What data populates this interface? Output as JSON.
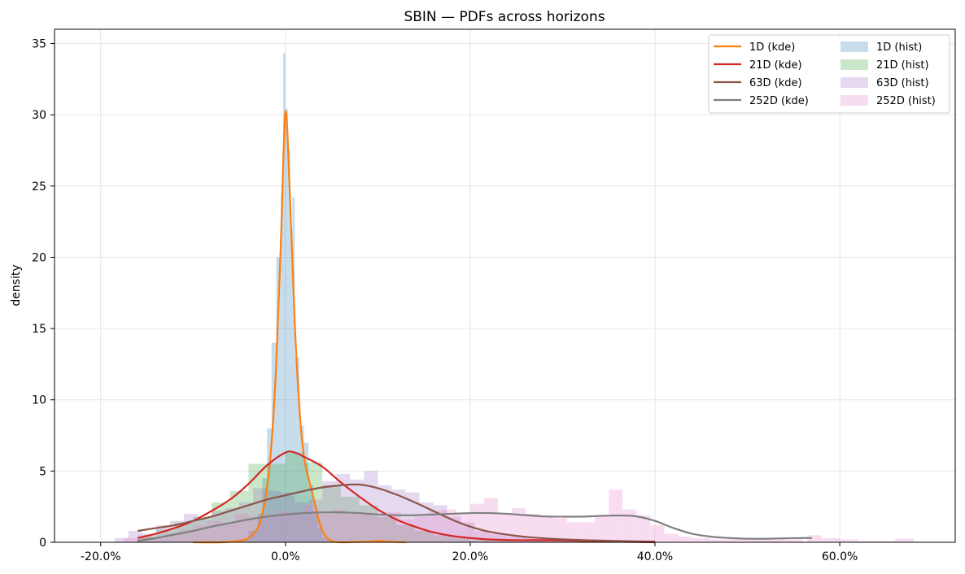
{
  "chart_data": {
    "type": "line",
    "title": "SBIN — PDFs across horizons",
    "xlabel": "",
    "ylabel": "density",
    "xlim": [
      -0.25,
      0.725
    ],
    "ylim": [
      0,
      36
    ],
    "xticks": [
      -0.2,
      0.0,
      0.2,
      0.4,
      0.6
    ],
    "xtick_labels": [
      "-20.0%",
      "0.0%",
      "20.0%",
      "40.0%",
      "60.0%"
    ],
    "yticks": [
      0,
      5,
      10,
      15,
      20,
      25,
      30,
      35
    ],
    "ytick_labels": [
      "0",
      "5",
      "10",
      "15",
      "20",
      "25",
      "30",
      "35"
    ],
    "grid": true,
    "legend_position": "top-right",
    "legend_columns": 2,
    "colors": {
      "1D_kde": "#ff7f0e",
      "21D_kde": "#d62728",
      "63D_kde": "#8c564b",
      "252D_kde": "#7f7f7f",
      "1D_hist": "#1f77b4",
      "21D_hist": "#2ca02c",
      "63D_hist": "#9467bd",
      "252D_hist": "#e377c2"
    },
    "series": [
      {
        "name": "1D (kde)",
        "kind": "kde",
        "color": "#ff7f0e",
        "points": [
          [
            -0.1,
            0.0
          ],
          [
            -0.07,
            0.0
          ],
          [
            -0.05,
            0.1
          ],
          [
            -0.04,
            0.3
          ],
          [
            -0.03,
            1.0
          ],
          [
            -0.025,
            2.0
          ],
          [
            -0.02,
            3.8
          ],
          [
            -0.015,
            7.0
          ],
          [
            -0.01,
            12.5
          ],
          [
            -0.005,
            21.0
          ],
          [
            0.0,
            30.2
          ],
          [
            0.005,
            24.0
          ],
          [
            0.01,
            15.5
          ],
          [
            0.015,
            9.5
          ],
          [
            0.02,
            6.0
          ],
          [
            0.025,
            4.5
          ],
          [
            0.03,
            3.2
          ],
          [
            0.035,
            1.8
          ],
          [
            0.04,
            0.8
          ],
          [
            0.045,
            0.3
          ],
          [
            0.05,
            0.1
          ],
          [
            0.06,
            0.0
          ],
          [
            0.09,
            0.05
          ],
          [
            0.1,
            0.1
          ],
          [
            0.11,
            0.05
          ],
          [
            0.13,
            0.0
          ]
        ]
      },
      {
        "name": "21D (kde)",
        "kind": "kde",
        "color": "#d62728",
        "points": [
          [
            -0.16,
            0.3
          ],
          [
            -0.14,
            0.6
          ],
          [
            -0.12,
            1.0
          ],
          [
            -0.1,
            1.5
          ],
          [
            -0.08,
            2.2
          ],
          [
            -0.06,
            3.0
          ],
          [
            -0.04,
            4.1
          ],
          [
            -0.02,
            5.4
          ],
          [
            0.0,
            6.3
          ],
          [
            0.01,
            6.3
          ],
          [
            0.02,
            6.0
          ],
          [
            0.04,
            5.3
          ],
          [
            0.06,
            4.2
          ],
          [
            0.08,
            3.2
          ],
          [
            0.1,
            2.3
          ],
          [
            0.12,
            1.6
          ],
          [
            0.14,
            1.1
          ],
          [
            0.16,
            0.7
          ],
          [
            0.18,
            0.45
          ],
          [
            0.2,
            0.3
          ],
          [
            0.22,
            0.2
          ],
          [
            0.25,
            0.15
          ],
          [
            0.28,
            0.15
          ],
          [
            0.31,
            0.12
          ],
          [
            0.34,
            0.07
          ],
          [
            0.37,
            0.03
          ],
          [
            0.4,
            0.0
          ]
        ]
      },
      {
        "name": "63D (kde)",
        "kind": "kde",
        "color": "#8c564b",
        "points": [
          [
            -0.16,
            0.8
          ],
          [
            -0.14,
            1.0
          ],
          [
            -0.12,
            1.2
          ],
          [
            -0.1,
            1.5
          ],
          [
            -0.08,
            1.8
          ],
          [
            -0.06,
            2.2
          ],
          [
            -0.04,
            2.6
          ],
          [
            -0.02,
            3.0
          ],
          [
            0.0,
            3.3
          ],
          [
            0.02,
            3.6
          ],
          [
            0.04,
            3.85
          ],
          [
            0.06,
            4.0
          ],
          [
            0.08,
            4.05
          ],
          [
            0.1,
            3.8
          ],
          [
            0.12,
            3.35
          ],
          [
            0.14,
            2.8
          ],
          [
            0.16,
            2.2
          ],
          [
            0.18,
            1.6
          ],
          [
            0.2,
            1.1
          ],
          [
            0.22,
            0.75
          ],
          [
            0.25,
            0.45
          ],
          [
            0.28,
            0.28
          ],
          [
            0.31,
            0.18
          ],
          [
            0.34,
            0.12
          ],
          [
            0.37,
            0.08
          ],
          [
            0.4,
            0.05
          ]
        ]
      },
      {
        "name": "252D (kde)",
        "kind": "kde",
        "color": "#7f7f7f",
        "points": [
          [
            -0.16,
            0.1
          ],
          [
            -0.14,
            0.3
          ],
          [
            -0.12,
            0.55
          ],
          [
            -0.1,
            0.8
          ],
          [
            -0.08,
            1.1
          ],
          [
            -0.06,
            1.35
          ],
          [
            -0.04,
            1.6
          ],
          [
            -0.02,
            1.8
          ],
          [
            0.0,
            1.95
          ],
          [
            0.02,
            2.05
          ],
          [
            0.04,
            2.1
          ],
          [
            0.06,
            2.1
          ],
          [
            0.08,
            2.05
          ],
          [
            0.1,
            1.95
          ],
          [
            0.12,
            1.9
          ],
          [
            0.14,
            1.9
          ],
          [
            0.16,
            1.95
          ],
          [
            0.18,
            2.0
          ],
          [
            0.2,
            2.05
          ],
          [
            0.22,
            2.05
          ],
          [
            0.24,
            2.0
          ],
          [
            0.26,
            1.9
          ],
          [
            0.28,
            1.82
          ],
          [
            0.3,
            1.8
          ],
          [
            0.32,
            1.8
          ],
          [
            0.34,
            1.85
          ],
          [
            0.36,
            1.88
          ],
          [
            0.38,
            1.82
          ],
          [
            0.4,
            1.5
          ],
          [
            0.42,
            1.0
          ],
          [
            0.44,
            0.6
          ],
          [
            0.46,
            0.4
          ],
          [
            0.48,
            0.3
          ],
          [
            0.5,
            0.25
          ],
          [
            0.52,
            0.25
          ],
          [
            0.54,
            0.28
          ],
          [
            0.56,
            0.3
          ],
          [
            0.57,
            0.3
          ]
        ]
      },
      {
        "name": "1D (hist)",
        "kind": "hist",
        "color": "#1f77b4",
        "opacity": 0.25,
        "bins": [
          [
            -0.05,
            -0.04,
            0.2
          ],
          [
            -0.04,
            -0.03,
            0.8
          ],
          [
            -0.03,
            -0.025,
            2.0
          ],
          [
            -0.025,
            -0.02,
            4.5
          ],
          [
            -0.02,
            -0.015,
            8.0
          ],
          [
            -0.015,
            -0.01,
            14.0
          ],
          [
            -0.01,
            -0.005,
            20.0
          ],
          [
            -0.005,
            -0.0025,
            24.5
          ],
          [
            -0.0025,
            0.0,
            34.3
          ],
          [
            0.0,
            0.0025,
            30.4
          ],
          [
            0.0025,
            0.005,
            27.5
          ],
          [
            0.005,
            0.0075,
            22.0
          ],
          [
            0.0075,
            0.01,
            24.2
          ],
          [
            0.01,
            0.015,
            13.0
          ],
          [
            0.015,
            0.02,
            8.2
          ],
          [
            0.02,
            0.025,
            7.0
          ],
          [
            0.025,
            0.03,
            4.0
          ],
          [
            0.03,
            0.035,
            2.0
          ],
          [
            0.035,
            0.04,
            1.0
          ],
          [
            0.04,
            0.05,
            0.3
          ]
        ]
      },
      {
        "name": "21D (hist)",
        "kind": "hist",
        "color": "#2ca02c",
        "opacity": 0.25,
        "bins": [
          [
            -0.16,
            -0.14,
            0.4
          ],
          [
            -0.14,
            -0.12,
            0.9
          ],
          [
            -0.12,
            -0.1,
            1.4
          ],
          [
            -0.1,
            -0.08,
            1.8
          ],
          [
            -0.08,
            -0.06,
            2.8
          ],
          [
            -0.06,
            -0.04,
            3.6
          ],
          [
            -0.04,
            -0.02,
            5.5
          ],
          [
            -0.02,
            0.0,
            5.5
          ],
          [
            0.0,
            0.02,
            6.3
          ],
          [
            0.02,
            0.04,
            5.6
          ],
          [
            0.04,
            0.06,
            4.0
          ],
          [
            0.06,
            0.08,
            3.2
          ],
          [
            0.08,
            0.1,
            2.6
          ],
          [
            0.1,
            0.12,
            1.8
          ],
          [
            0.12,
            0.14,
            1.2
          ],
          [
            0.14,
            0.16,
            0.8
          ],
          [
            0.16,
            0.18,
            0.5
          ],
          [
            0.18,
            0.2,
            0.3
          ],
          [
            0.2,
            0.25,
            0.15
          ],
          [
            0.25,
            0.3,
            0.12
          ],
          [
            0.3,
            0.36,
            0.1
          ]
        ]
      },
      {
        "name": "63D (hist)",
        "kind": "hist",
        "color": "#9467bd",
        "opacity": 0.25,
        "bins": [
          [
            -0.185,
            -0.17,
            0.3
          ],
          [
            -0.17,
            -0.155,
            0.8
          ],
          [
            -0.155,
            -0.14,
            0.6
          ],
          [
            -0.14,
            -0.125,
            1.2
          ],
          [
            -0.125,
            -0.11,
            1.5
          ],
          [
            -0.11,
            -0.095,
            2.0
          ],
          [
            -0.095,
            -0.08,
            1.6
          ],
          [
            -0.08,
            -0.065,
            2.2
          ],
          [
            -0.065,
            -0.05,
            2.4
          ],
          [
            -0.05,
            -0.035,
            2.8
          ],
          [
            -0.035,
            -0.02,
            3.8
          ],
          [
            -0.02,
            -0.005,
            3.6
          ],
          [
            -0.005,
            0.01,
            3.5
          ],
          [
            0.01,
            0.025,
            2.8
          ],
          [
            0.025,
            0.04,
            3.0
          ],
          [
            0.04,
            0.055,
            4.3
          ],
          [
            0.055,
            0.07,
            4.8
          ],
          [
            0.07,
            0.085,
            4.4
          ],
          [
            0.085,
            0.1,
            5.0
          ],
          [
            0.1,
            0.115,
            4.0
          ],
          [
            0.115,
            0.13,
            3.7
          ],
          [
            0.13,
            0.145,
            3.5
          ],
          [
            0.145,
            0.16,
            2.8
          ],
          [
            0.16,
            0.175,
            2.6
          ],
          [
            0.175,
            0.19,
            1.8
          ],
          [
            0.19,
            0.205,
            1.4
          ],
          [
            0.205,
            0.22,
            0.8
          ],
          [
            0.22,
            0.24,
            0.6
          ],
          [
            0.24,
            0.26,
            0.4
          ],
          [
            0.26,
            0.29,
            0.3
          ],
          [
            0.29,
            0.32,
            0.25
          ],
          [
            0.32,
            0.35,
            0.2
          ]
        ]
      },
      {
        "name": "252D (hist)",
        "kind": "hist",
        "color": "#e377c2",
        "opacity": 0.25,
        "bins": [
          [
            -0.175,
            -0.16,
            0.3
          ],
          [
            -0.16,
            -0.145,
            0.5
          ],
          [
            -0.145,
            -0.13,
            0.3
          ],
          [
            -0.13,
            -0.115,
            0.6
          ],
          [
            -0.115,
            -0.1,
            0.9
          ],
          [
            -0.1,
            -0.085,
            1.2
          ],
          [
            -0.085,
            -0.07,
            1.5
          ],
          [
            -0.07,
            -0.055,
            1.4
          ],
          [
            -0.055,
            -0.04,
            2.0
          ],
          [
            -0.04,
            -0.025,
            1.8
          ],
          [
            -0.025,
            -0.01,
            2.0
          ],
          [
            -0.01,
            0.005,
            2.2
          ],
          [
            0.005,
            0.02,
            2.1
          ],
          [
            0.02,
            0.035,
            2.6
          ],
          [
            0.035,
            0.05,
            2.0
          ],
          [
            0.05,
            0.065,
            2.3
          ],
          [
            0.065,
            0.08,
            2.0
          ],
          [
            0.08,
            0.095,
            2.0
          ],
          [
            0.095,
            0.11,
            1.8
          ],
          [
            0.11,
            0.125,
            2.1
          ],
          [
            0.125,
            0.14,
            1.6
          ],
          [
            0.14,
            0.155,
            1.8
          ],
          [
            0.155,
            0.17,
            2.2
          ],
          [
            0.17,
            0.185,
            2.3
          ],
          [
            0.185,
            0.2,
            2.0
          ],
          [
            0.2,
            0.215,
            2.7
          ],
          [
            0.215,
            0.23,
            3.1
          ],
          [
            0.23,
            0.245,
            2.0
          ],
          [
            0.245,
            0.26,
            2.4
          ],
          [
            0.26,
            0.275,
            2.0
          ],
          [
            0.275,
            0.29,
            1.8
          ],
          [
            0.29,
            0.305,
            1.7
          ],
          [
            0.305,
            0.32,
            1.4
          ],
          [
            0.32,
            0.335,
            1.4
          ],
          [
            0.335,
            0.35,
            1.8
          ],
          [
            0.35,
            0.365,
            3.7
          ],
          [
            0.365,
            0.38,
            2.3
          ],
          [
            0.38,
            0.395,
            1.9
          ],
          [
            0.395,
            0.41,
            1.2
          ],
          [
            0.41,
            0.425,
            0.6
          ],
          [
            0.425,
            0.44,
            0.4
          ],
          [
            0.44,
            0.46,
            0.3
          ],
          [
            0.46,
            0.5,
            0.2
          ],
          [
            0.5,
            0.56,
            0.2
          ],
          [
            0.565,
            0.58,
            0.5
          ],
          [
            0.58,
            0.6,
            0.3
          ],
          [
            0.6,
            0.62,
            0.2
          ],
          [
            0.62,
            0.66,
            0.1
          ],
          [
            0.66,
            0.68,
            0.25
          ]
        ]
      }
    ],
    "legend": [
      [
        "1D (kde)",
        "1D (hist)"
      ],
      [
        "21D (kde)",
        "21D (hist)"
      ],
      [
        "63D (kde)",
        "63D (hist)"
      ],
      [
        "252D (kde)",
        "252D (hist)"
      ]
    ]
  }
}
